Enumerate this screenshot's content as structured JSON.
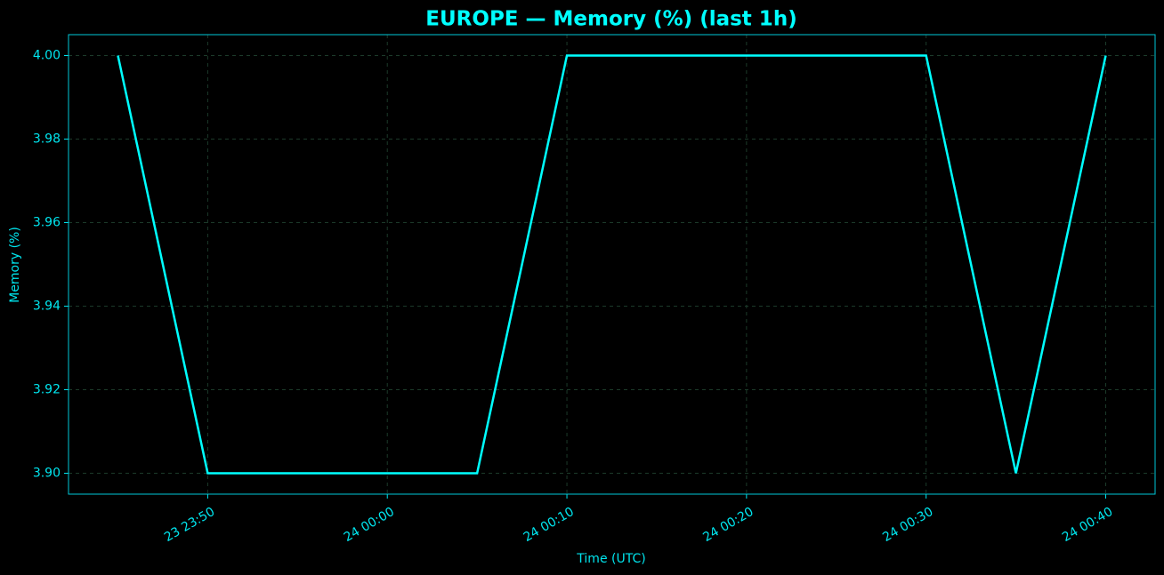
{
  "chart_data": {
    "type": "line",
    "title": "EUROPE — Memory (%) (last 1h)",
    "x_label": "Time (UTC)",
    "y_label": "Memory (%)",
    "x": [
      "23 23:45",
      "23 23:50",
      "23 23:55",
      "24 00:00",
      "24 00:05",
      "24 00:10",
      "24 00:15",
      "24 00:20",
      "24 00:25",
      "24 00:30",
      "24 00:35",
      "24 00:40"
    ],
    "values": [
      4.0,
      3.9,
      3.9,
      3.9,
      3.9,
      4.0,
      4.0,
      4.0,
      4.0,
      4.0,
      3.9,
      4.0
    ],
    "color": "#00ffff",
    "xlim": [
      "23 23:42:15",
      "24 00:42:45"
    ],
    "xticks": [
      "23 23:50",
      "24 00:00",
      "24 00:10",
      "24 00:20",
      "24 00:30",
      "24 00:40"
    ],
    "ylim": [
      3.895,
      4.005
    ],
    "yticks": [
      {
        "value": 3.9,
        "label": "3.90"
      },
      {
        "value": 3.92,
        "label": "3.92"
      },
      {
        "value": 3.94,
        "label": "3.94"
      },
      {
        "value": 3.96,
        "label": "3.96"
      },
      {
        "value": 3.98,
        "label": "3.98"
      },
      {
        "value": 4.0,
        "label": "4.00"
      }
    ],
    "grid": true
  }
}
